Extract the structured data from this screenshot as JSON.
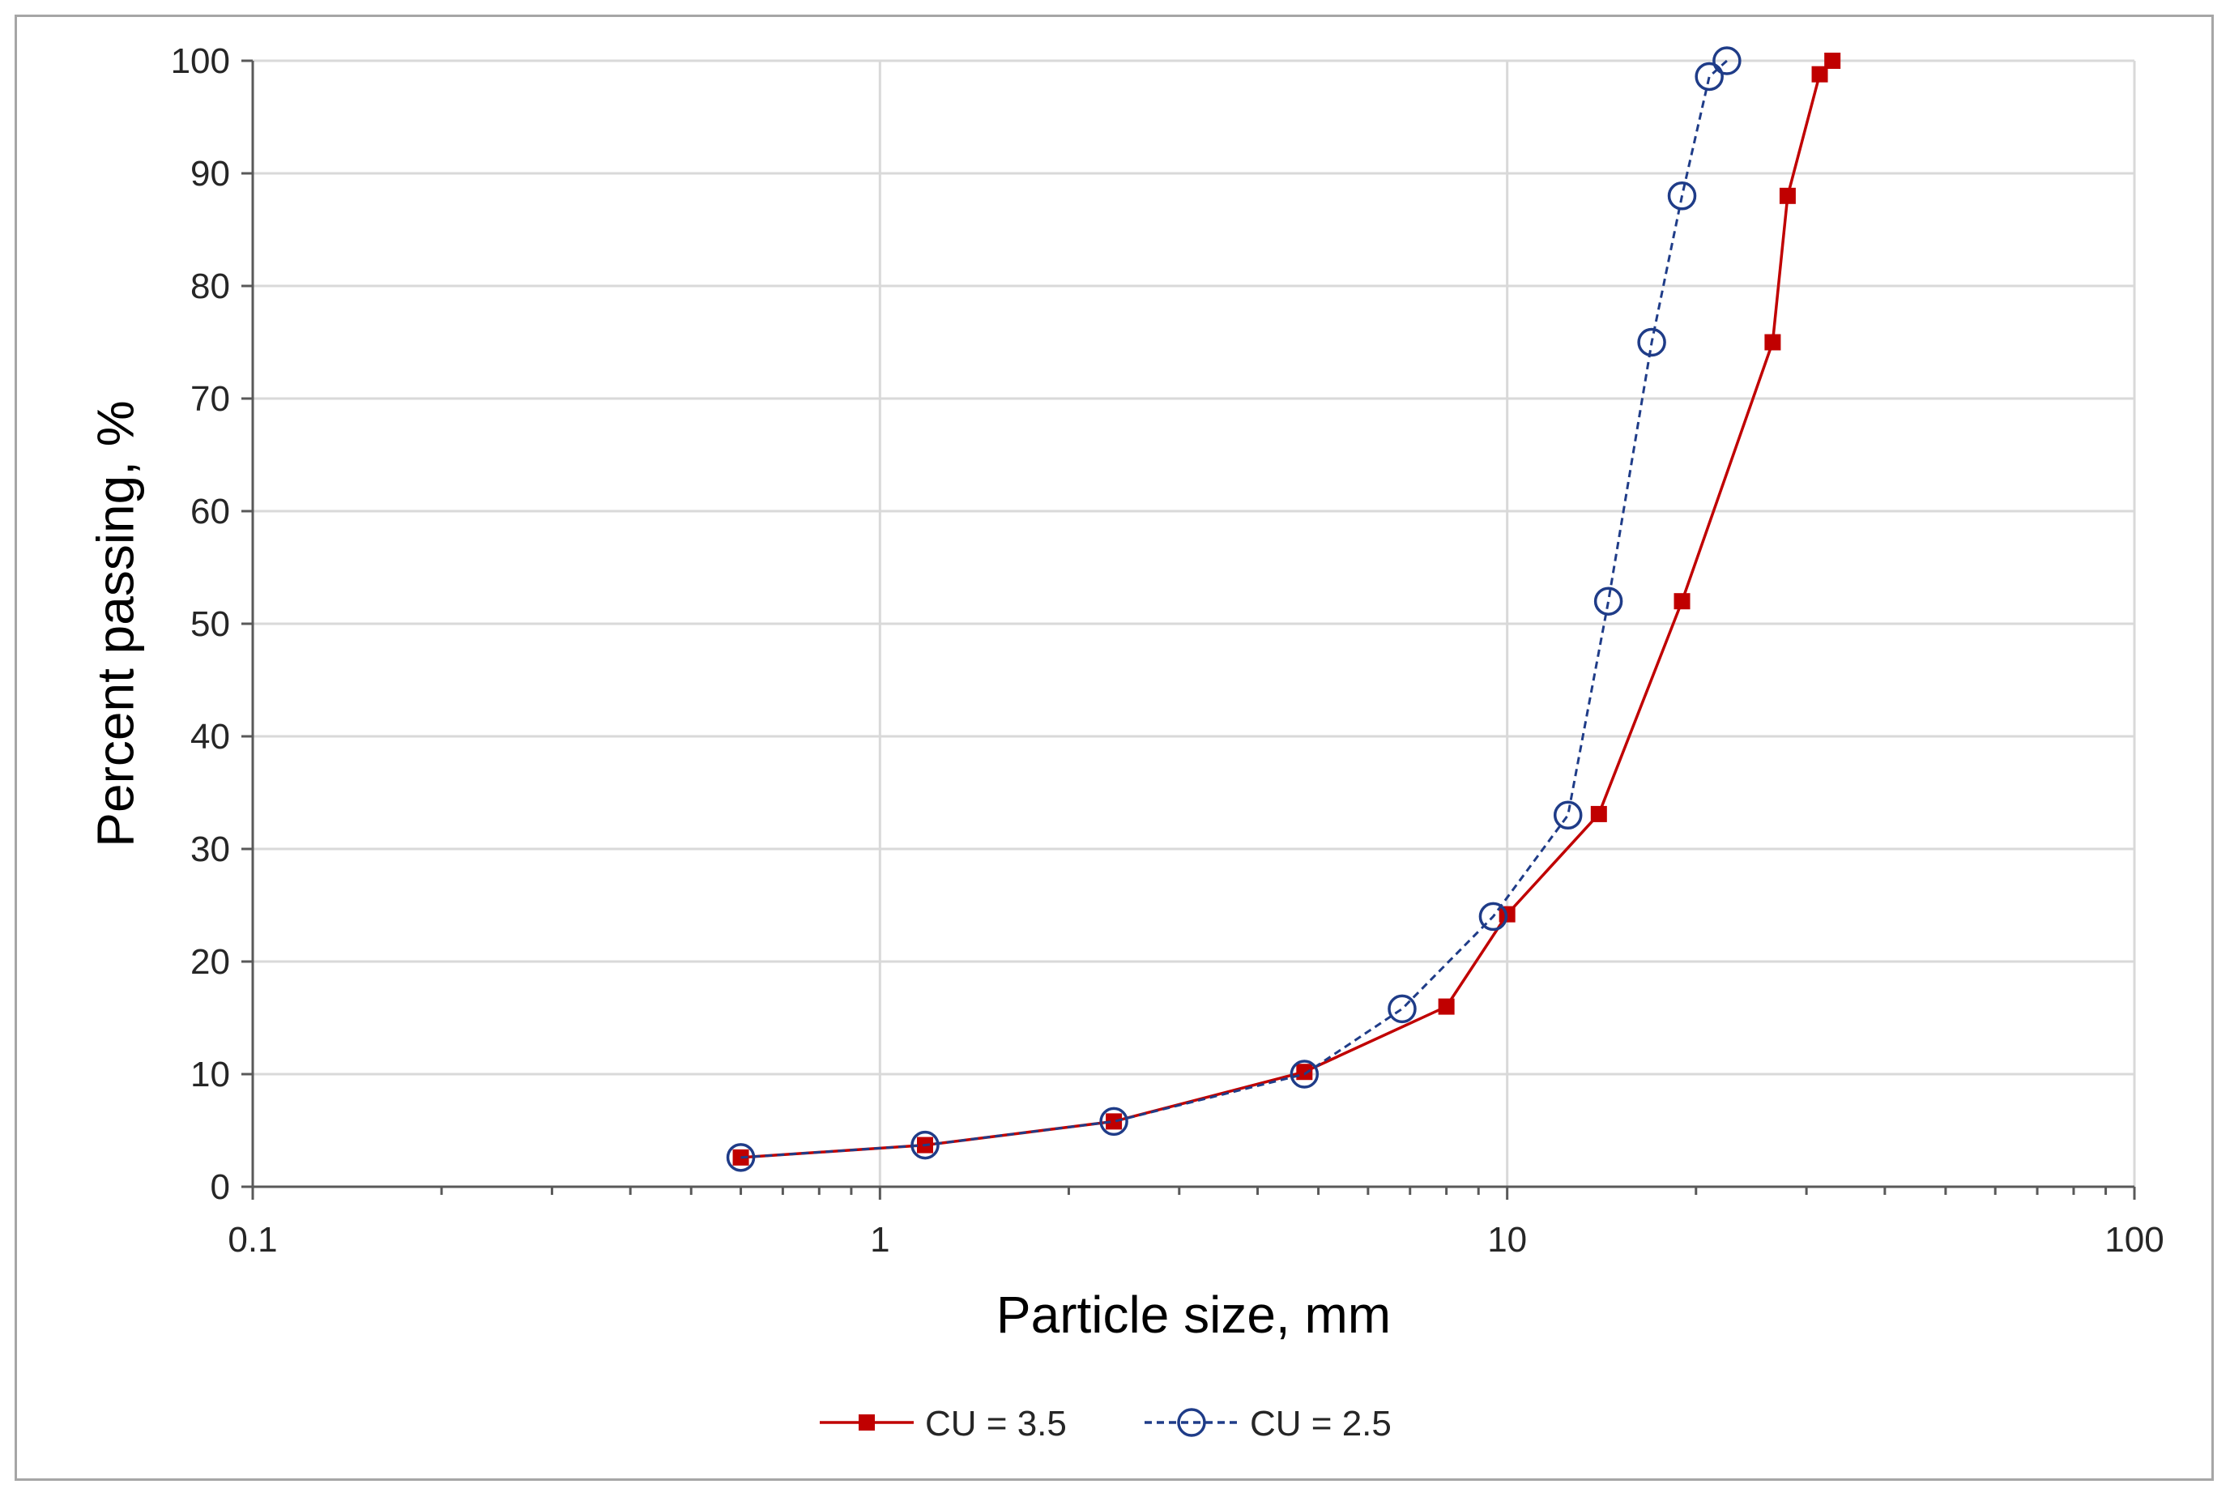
{
  "chart_data": {
    "type": "line",
    "xlabel": "Particle size, mm",
    "ylabel": "Percent passing, %",
    "xscale": "log",
    "xlim": [
      0.1,
      100
    ],
    "ylim": [
      0,
      100
    ],
    "xticks": [
      "0.1",
      "1",
      "10",
      "100"
    ],
    "yticks": [
      "0",
      "10",
      "20",
      "30",
      "40",
      "50",
      "60",
      "70",
      "80",
      "90",
      "100"
    ],
    "grid": true,
    "legend_position": "bottom",
    "series": [
      {
        "name": "CU = 3.5",
        "color": "#c00000",
        "line": "solid",
        "marker": "filled-square",
        "x": [
          0.6,
          1.18,
          2.36,
          4.75,
          8.0,
          10.0,
          14.0,
          19.0,
          26.5,
          28.0,
          31.5,
          33.0
        ],
        "y": [
          2.6,
          3.7,
          5.8,
          10.2,
          16.0,
          24.2,
          33.1,
          52.0,
          75.0,
          88.0,
          98.8,
          100.0
        ]
      },
      {
        "name": "CU = 2.5",
        "color": "#1f3c88",
        "line": "dashed",
        "marker": "open-circle",
        "x": [
          0.6,
          1.18,
          2.36,
          4.75,
          6.8,
          9.5,
          12.5,
          14.5,
          17.0,
          19.0,
          21.0,
          22.4
        ],
        "y": [
          2.6,
          3.7,
          5.8,
          10.0,
          15.8,
          24.0,
          33.0,
          52.0,
          75.0,
          88.0,
          98.6,
          100.0
        ]
      }
    ]
  }
}
